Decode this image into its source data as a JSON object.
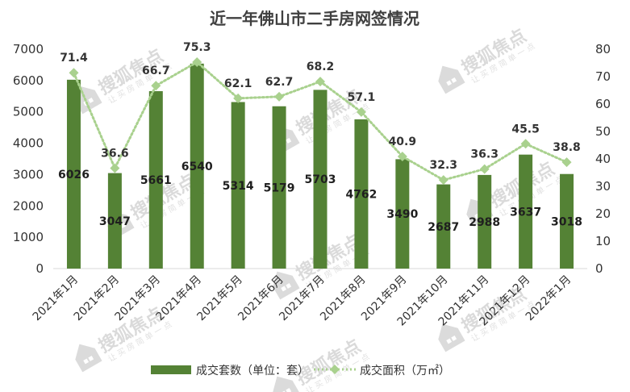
{
  "chart_data": {
    "type": "bar",
    "title": "近一年佛山市二手房网签情况",
    "categories": [
      "2021年1月",
      "2021年2月",
      "2021年3月",
      "2021年4月",
      "2021年5月",
      "2021年6月",
      "2021年7月",
      "2021年8月",
      "2021年9月",
      "2021年10月",
      "2021年11月",
      "2021年12月",
      "2022年1月"
    ],
    "series": [
      {
        "name": "成交套数（单位：套）",
        "type": "bar",
        "axis": "left",
        "color": "#548235",
        "values": [
          6026,
          3047,
          5661,
          6540,
          5314,
          5179,
          5703,
          4762,
          3490,
          2687,
          2988,
          3637,
          3018
        ],
        "labels": [
          "6026",
          "3047",
          "5661",
          "6540",
          "5314",
          "5179",
          "5703",
          "4762",
          "3490",
          "2687",
          "2988",
          "3637",
          "3018"
        ]
      },
      {
        "name": "成交面积（万㎡）",
        "type": "line",
        "axis": "right",
        "color": "#a9d18e",
        "line_style": "dotted",
        "marker": "diamond",
        "values": [
          71.4,
          36.6,
          66.7,
          75.3,
          62.1,
          62.7,
          68.2,
          57.1,
          40.9,
          32.3,
          36.3,
          45.5,
          38.8
        ],
        "labels": [
          "71.4",
          "36.6",
          "66.7",
          "75.3",
          "62.1",
          "62.7",
          "68.2",
          "57.1",
          "40.9",
          "32.3",
          "36.3",
          "45.5",
          "38.8"
        ]
      }
    ],
    "y_left": {
      "ylim": [
        0,
        7000
      ],
      "ticks": [
        "0",
        "1000",
        "2000",
        "3000",
        "4000",
        "5000",
        "6000",
        "7000"
      ]
    },
    "y_right": {
      "ylim": [
        0,
        80
      ],
      "ticks": [
        "0",
        "10",
        "20",
        "30",
        "40",
        "50",
        "60",
        "70",
        "80"
      ]
    },
    "grid": false,
    "legend_position": "bottom"
  },
  "watermark": {
    "text": "搜狐焦点",
    "subtext": "让 买 房 简 单 一 点",
    "icon": "house-logo-icon"
  }
}
